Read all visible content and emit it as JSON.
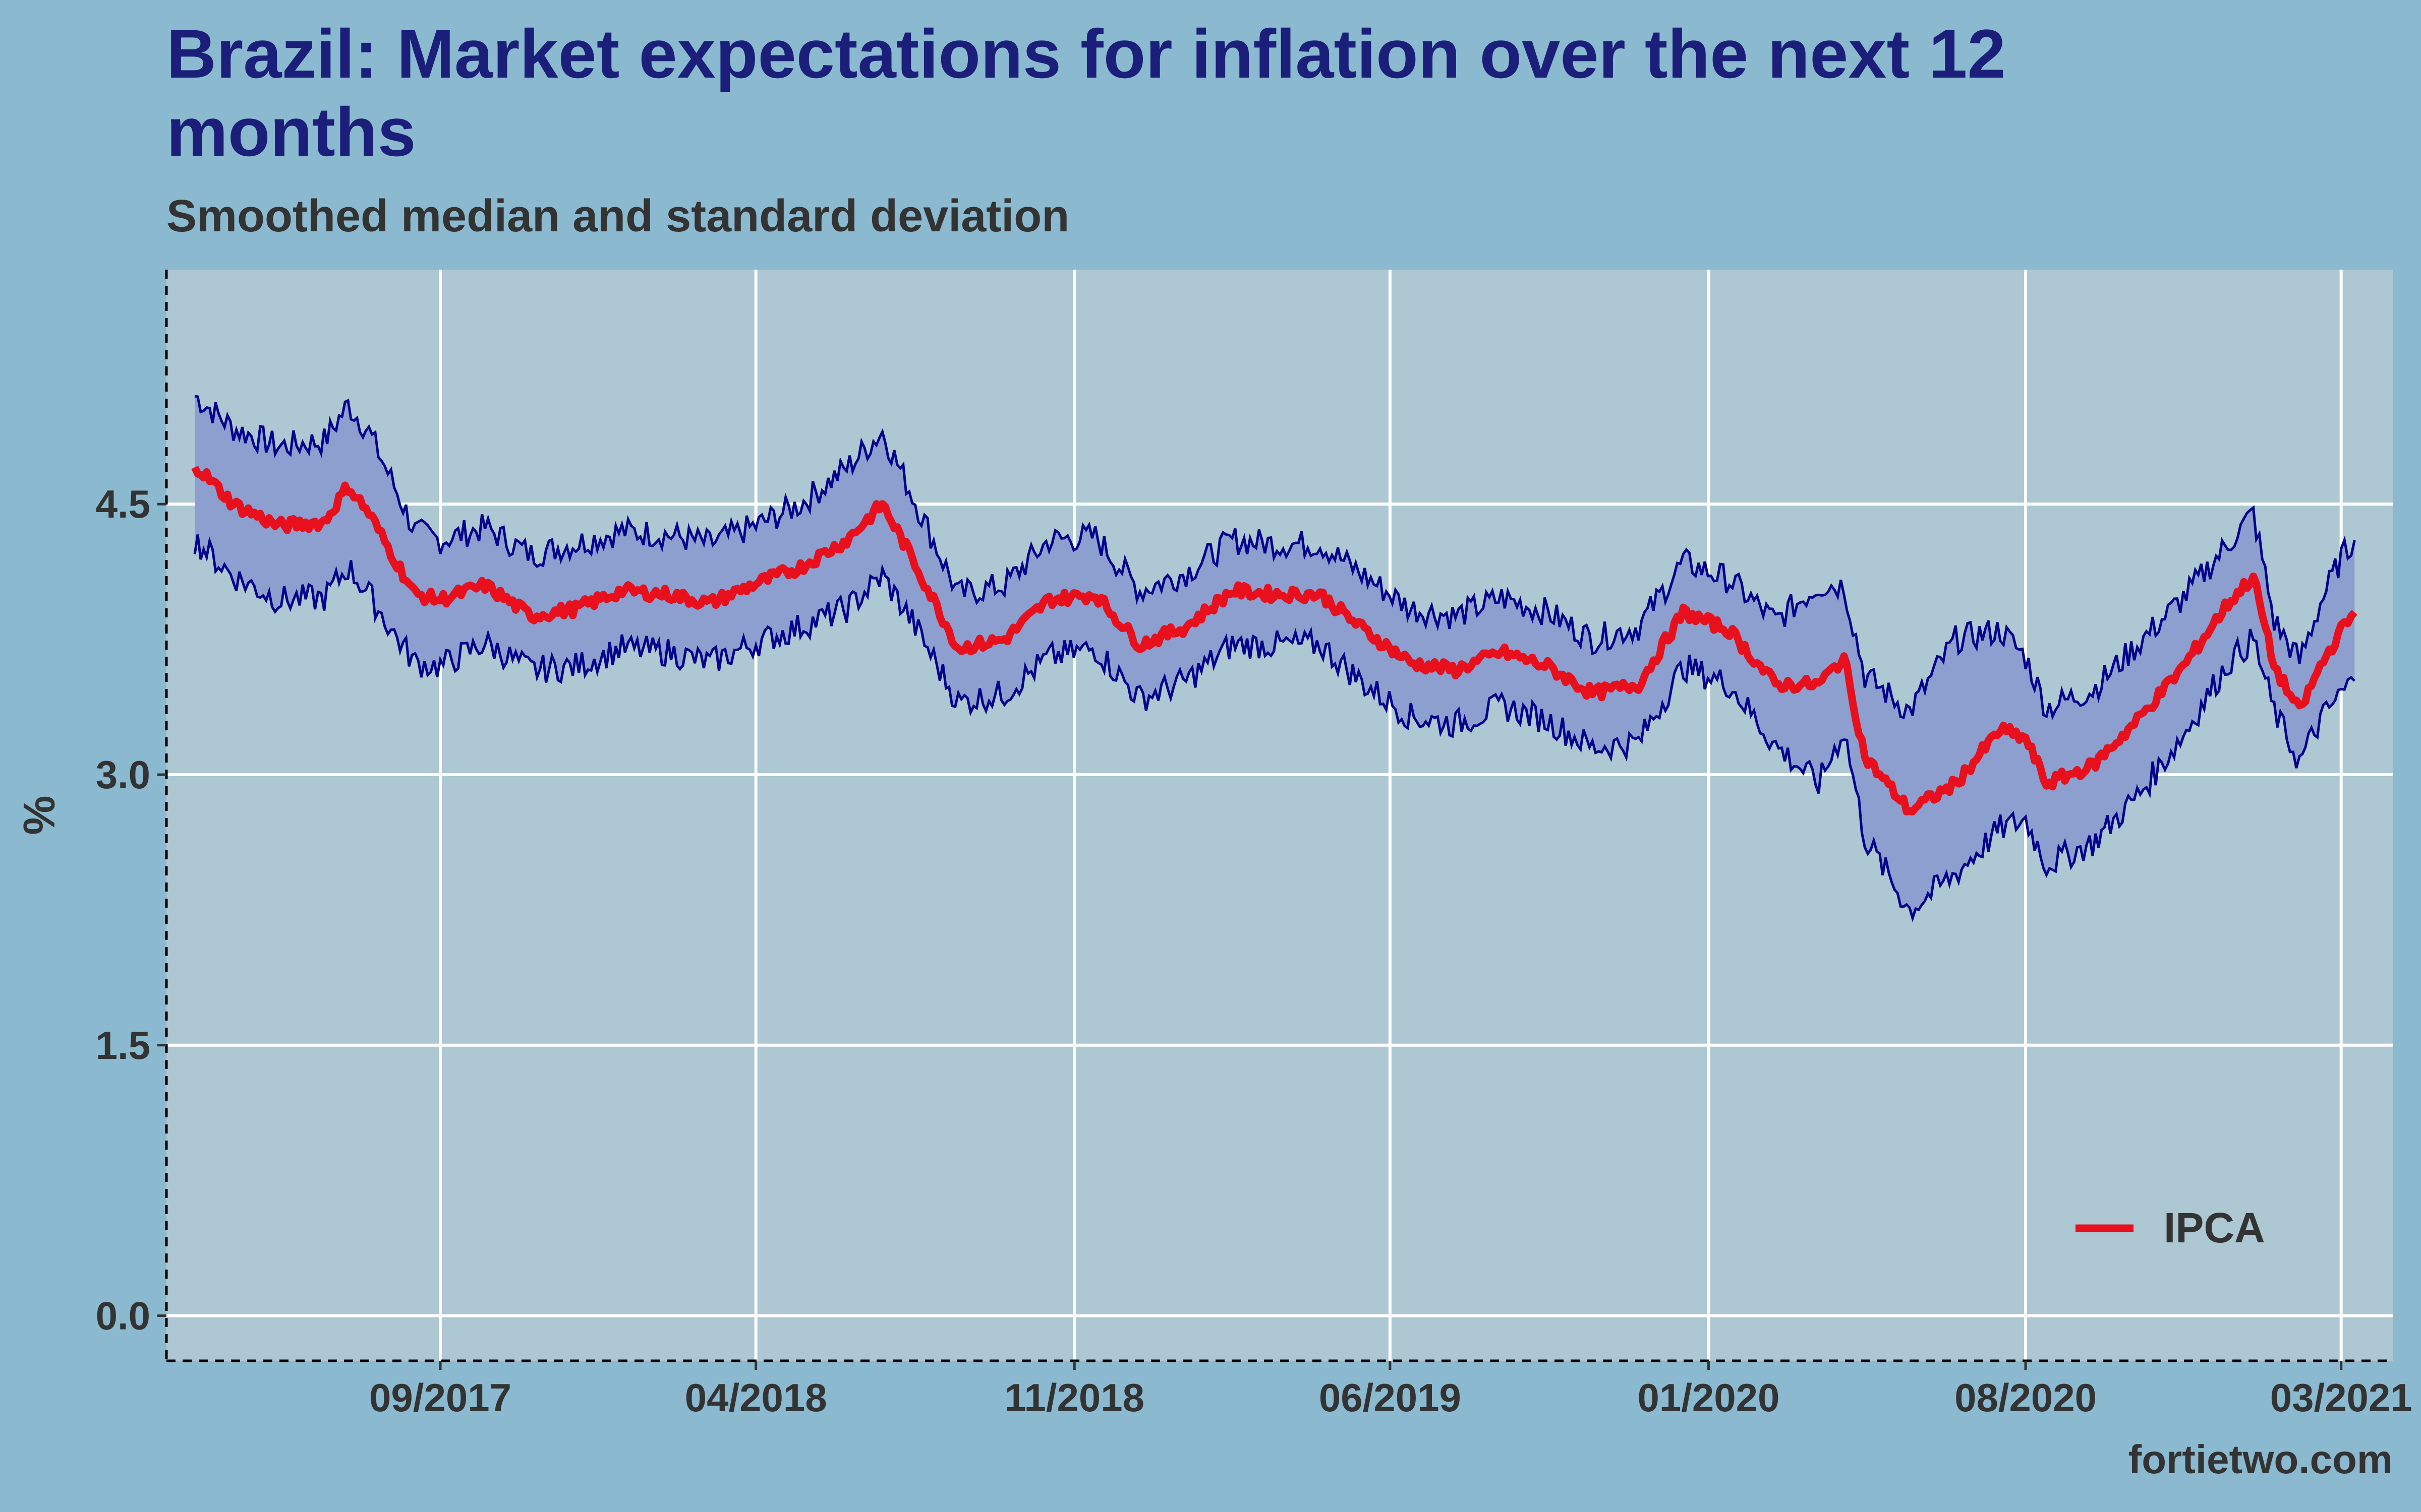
{
  "title": "Brazil: Market expectations for inflation over the next 12 months",
  "subtitle": "Smoothed median and standard deviation",
  "footer": "fortietwo.com",
  "chart_data": {
    "type": "line",
    "ylabel": "%",
    "xlabel": "",
    "ylim": [
      -0.25,
      5.8
    ],
    "yticks": [
      0.0,
      1.5,
      3.0,
      4.5
    ],
    "ytick_labels": [
      "0.0",
      "1.5",
      "3.0",
      "4.5"
    ],
    "xlim": [
      "2017-03-01",
      "2021-04-05"
    ],
    "xticks": [
      "2017-09-01",
      "2018-04-01",
      "2018-11-01",
      "2019-06-01",
      "2020-01-01",
      "2020-08-01",
      "2021-03-01"
    ],
    "xtick_labels": [
      "09/2017",
      "04/2018",
      "11/2018",
      "06/2019",
      "01/2020",
      "08/2020",
      "03/2021"
    ],
    "grid": true,
    "legend_position": "bottom-right",
    "band_label": "standard deviation",
    "colors": {
      "median": "#e8101c",
      "band_fill": "#8c9fcf",
      "band_line": "#04038c",
      "panel": "#adc7d3",
      "grid": "#ffffff",
      "text": "#333333",
      "title": "#1b1f7a"
    },
    "x": [
      "2017-03-20",
      "2017-04-15",
      "2017-05-15",
      "2017-06-15",
      "2017-07-01",
      "2017-07-15",
      "2017-08-01",
      "2017-08-15",
      "2017-09-01",
      "2017-10-01",
      "2017-11-01",
      "2017-12-01",
      "2018-01-01",
      "2018-02-01",
      "2018-03-01",
      "2018-04-01",
      "2018-05-01",
      "2018-06-01",
      "2018-06-25",
      "2018-07-15",
      "2018-08-15",
      "2018-09-15",
      "2018-10-15",
      "2018-11-15",
      "2018-12-15",
      "2019-01-15",
      "2019-02-15",
      "2019-03-15",
      "2019-04-15",
      "2019-05-15",
      "2019-06-15",
      "2019-07-15",
      "2019-08-15",
      "2019-09-15",
      "2019-10-15",
      "2019-11-15",
      "2019-12-15",
      "2020-01-15",
      "2020-02-15",
      "2020-03-15",
      "2020-04-01",
      "2020-04-15",
      "2020-05-15",
      "2020-06-15",
      "2020-07-15",
      "2020-08-01",
      "2020-08-15",
      "2020-09-15",
      "2020-10-15",
      "2020-11-15",
      "2020-12-15",
      "2021-01-01",
      "2021-01-15",
      "2021-02-01",
      "2021-02-15",
      "2021-03-01",
      "2021-03-10"
    ],
    "series": [
      {
        "name": "IPCA",
        "values": [
          4.72,
          4.5,
          4.38,
          4.4,
          4.6,
          4.45,
          4.2,
          4.0,
          3.97,
          4.05,
          3.88,
          3.92,
          4.02,
          4.0,
          3.95,
          4.06,
          4.15,
          4.3,
          4.5,
          4.2,
          3.7,
          3.75,
          3.97,
          4.0,
          3.72,
          3.82,
          4.02,
          4.0,
          4.0,
          3.8,
          3.62,
          3.58,
          3.68,
          3.6,
          3.45,
          3.5,
          3.9,
          3.8,
          3.5,
          3.5,
          3.65,
          3.1,
          2.8,
          2.95,
          3.25,
          3.2,
          2.95,
          3.05,
          3.3,
          3.6,
          3.95,
          4.1,
          3.6,
          3.35,
          3.6,
          3.8,
          3.9
        ]
      }
    ],
    "upper": [
      5.1,
      4.92,
      4.82,
      4.85,
      5.05,
      4.9,
      4.6,
      4.35,
      4.3,
      4.37,
      4.22,
      4.28,
      4.35,
      4.33,
      4.28,
      4.38,
      4.5,
      4.7,
      4.9,
      4.55,
      4.0,
      4.05,
      4.3,
      4.32,
      4.02,
      4.12,
      4.3,
      4.28,
      4.28,
      4.1,
      3.92,
      3.88,
      3.98,
      3.9,
      3.75,
      3.82,
      4.18,
      4.08,
      3.85,
      4.05,
      4.05,
      3.55,
      3.35,
      3.75,
      3.8,
      3.65,
      3.37,
      3.47,
      3.72,
      3.98,
      4.28,
      4.45,
      3.85,
      3.63,
      3.95,
      4.2,
      4.3
    ],
    "lower": [
      4.3,
      4.1,
      3.97,
      3.98,
      4.15,
      4.0,
      3.78,
      3.62,
      3.6,
      3.73,
      3.58,
      3.6,
      3.7,
      3.68,
      3.62,
      3.73,
      3.82,
      3.92,
      4.1,
      3.85,
      3.4,
      3.45,
      3.65,
      3.7,
      3.42,
      3.52,
      3.72,
      3.72,
      3.72,
      3.5,
      3.32,
      3.28,
      3.38,
      3.3,
      3.15,
      3.18,
      3.6,
      3.5,
      3.16,
      2.95,
      3.25,
      2.65,
      2.25,
      2.45,
      2.7,
      2.75,
      2.5,
      2.62,
      2.88,
      3.22,
      3.62,
      3.75,
      3.35,
      3.07,
      3.3,
      3.45,
      3.52
    ]
  }
}
